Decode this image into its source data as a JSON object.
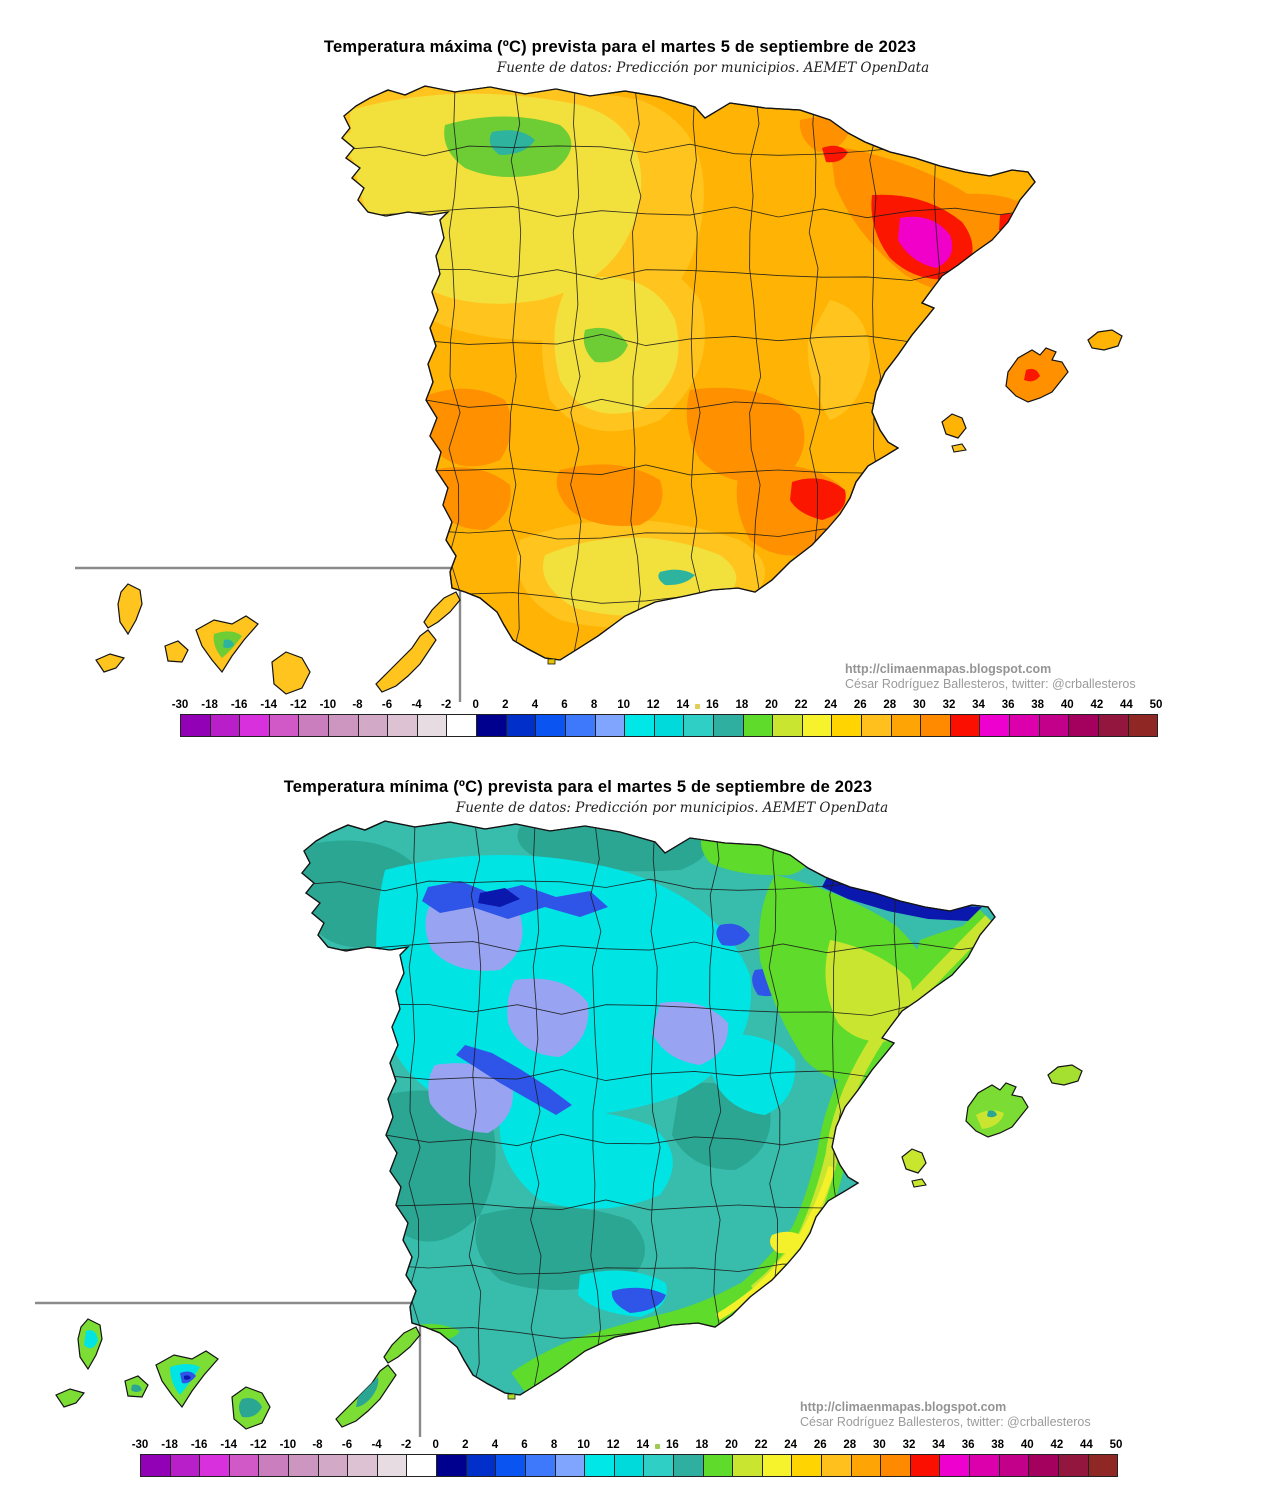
{
  "maps": [
    {
      "key": "max",
      "title": "Temperatura máxima (ºC) prevista para el martes 5 de septiembre de 2023",
      "subtitle": "Fuente de datos: Predicción por municipios. AEMET OpenData",
      "credit_line1": "http://climaenmapas.blogspot.com",
      "credit_line2": "César Rodríguez Ballesteros, twitter: @crballesteros",
      "mid_marker_color": "#E2CD55"
    },
    {
      "key": "min",
      "title": "Temperatura mínima (ºC) prevista para el martes 5 de septiembre de 2023",
      "subtitle": "Fuente de datos: Predicción por municipios. AEMET OpenData",
      "credit_line1": "http://climaenmapas.blogspot.com",
      "credit_line2": "César Rodríguez Ballesteros, twitter: @crballesteros",
      "mid_marker_color": "#9CCB4F"
    }
  ],
  "legend": {
    "unit": "ºC",
    "tick_labels": [
      "-30",
      "-18",
      "-16",
      "-14",
      "-12",
      "-10",
      "-8",
      "-6",
      "-4",
      "-2",
      "0",
      "2",
      "4",
      "6",
      "8",
      "10",
      "12",
      "14",
      "16",
      "18",
      "20",
      "22",
      "24",
      "26",
      "28",
      "30",
      "32",
      "34",
      "36",
      "38",
      "40",
      "42",
      "44",
      "50"
    ],
    "segment_colors": [
      "#9201B5",
      "#B81FC9",
      "#D830DC",
      "#D159C7",
      "#CB7EBD",
      "#CD96C0",
      "#D3A9C8",
      "#DDC2D4",
      "#E6DCE2",
      "#FFFFFF",
      "#00008F",
      "#0030C9",
      "#0A55F2",
      "#3E79FB",
      "#7FA5FF",
      "#00E7E7",
      "#00DADA",
      "#2FCFC5",
      "#2FAFA0",
      "#5FDB2B",
      "#C9E530",
      "#F6F22B",
      "#FFD400",
      "#FFC01E",
      "#FFA405",
      "#FF8A00",
      "#FB0F00",
      "#EE00CE",
      "#DC00AC",
      "#C20089",
      "#A4005E",
      "#92163E",
      "#8F2724"
    ],
    "mid_marker_after_label": "14"
  }
}
